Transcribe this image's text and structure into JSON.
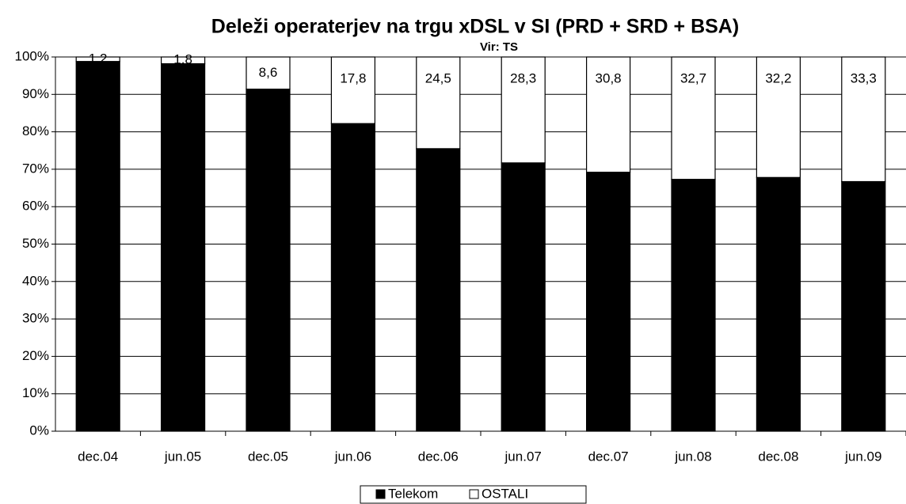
{
  "chart_data": {
    "type": "stacked_bar",
    "title": "Deleži operaterjev na trgu xDSL v SI (PRD + SRD + BSA)",
    "subtitle": "Vir: TS",
    "categories": [
      "dec.04",
      "jun.05",
      "dec.05",
      "jun.06",
      "dec.06",
      "jun.07",
      "dec.07",
      "jun.08",
      "dec.08",
      "jun.09"
    ],
    "series": [
      {
        "name": "Telekom",
        "color": "#000000",
        "values": [
          98.8,
          98.2,
          91.4,
          82.2,
          75.5,
          71.7,
          69.2,
          67.3,
          67.8,
          66.7
        ]
      },
      {
        "name": "OSTALI",
        "color": "#ffffff",
        "values": [
          1.2,
          1.8,
          8.6,
          17.8,
          24.5,
          28.3,
          30.8,
          32.7,
          32.2,
          33.3
        ],
        "value_labels": [
          "1,2",
          "1,8",
          "8,6",
          "17,8",
          "24,5",
          "28,3",
          "30,8",
          "32,7",
          "32,2",
          "33,3"
        ]
      }
    ],
    "ylim": [
      0,
      100
    ],
    "yticks": [
      {
        "value": 0,
        "label": "0%"
      },
      {
        "value": 10,
        "label": "10%"
      },
      {
        "value": 20,
        "label": "20%"
      },
      {
        "value": 30,
        "label": "30%"
      },
      {
        "value": 40,
        "label": "40%"
      },
      {
        "value": 50,
        "label": "50%"
      },
      {
        "value": 60,
        "label": "60%"
      },
      {
        "value": 70,
        "label": "70%"
      },
      {
        "value": 80,
        "label": "80%"
      },
      {
        "value": 90,
        "label": "90%"
      },
      {
        "value": 100,
        "label": "100%"
      }
    ],
    "grid": true,
    "legend": "bottom"
  }
}
